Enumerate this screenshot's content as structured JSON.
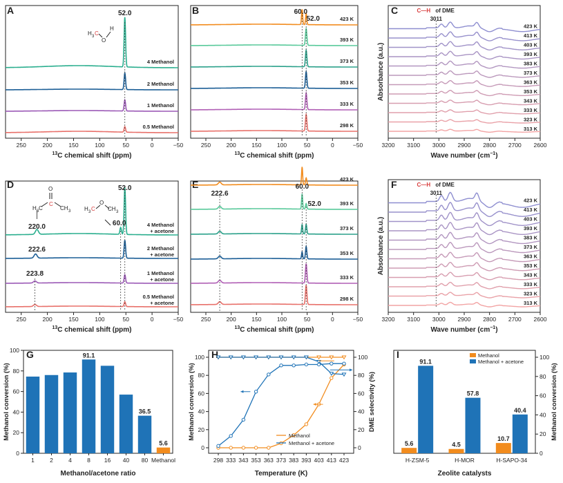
{
  "colors": {
    "orange": "#F28C1E",
    "blue": "#1F73B7",
    "teal": "#2AAE8E",
    "navy": "#1B5E96",
    "purple": "#9B59B6",
    "salmon": "#E8706A",
    "axis": "#222222"
  },
  "labels": {
    "A": "A",
    "B": "B",
    "C": "C",
    "D": "D",
    "E": "E",
    "F": "F",
    "G": "G",
    "H": "H",
    "I": "I",
    "nmr_xlabel": "13C chemical shift (ppm)",
    "nmr_sup": "13",
    "nmr_xlabel_rest": "C chemical shift (ppm)",
    "ir_xlabel": "Wave number (cm",
    "ir_xlabel_sup": "−1",
    "ir_xlabel_end": ")",
    "ir_ylabel": "Absorbance (a.u.)",
    "ch_label": "C—H",
    "of_dme": "of DME",
    "peak_3011": "3011",
    "peak_52": "52.0",
    "peak_60": "60.0",
    "peak_2226": "222.6",
    "peak_2238": "223.8",
    "peak_2200": "220.0",
    "mol_methanol": "H3C–O–H",
    "mol_acetone": "acetone",
    "mol_dme": "DME"
  },
  "chart_data": [
    {
      "panel": "A",
      "type": "line",
      "title": "",
      "xlabel": "13C chemical shift (ppm)",
      "xlim": [
        280,
        -50
      ],
      "xticks": [
        "250",
        "200",
        "150",
        "100",
        "50",
        "0",
        "−50"
      ],
      "series": [
        {
          "name": "0.5 Methanol",
          "peak_ppm": 52.0
        },
        {
          "name": "1 Methanol",
          "peak_ppm": 52.0
        },
        {
          "name": "2 Methanol",
          "peak_ppm": 52.0
        },
        {
          "name": "4 Methanol",
          "peak_ppm": 52.0
        }
      ],
      "annotations": [
        "52.0"
      ]
    },
    {
      "panel": "B",
      "type": "line",
      "xlabel": "13C chemical shift (ppm)",
      "xlim": [
        280,
        -50
      ],
      "xticks": [
        "250",
        "200",
        "150",
        "100",
        "50",
        "0",
        "−50"
      ],
      "series": [
        {
          "name": "298 K",
          "peak_ppm": 52.0
        },
        {
          "name": "333 K",
          "peak_ppm": 52.0
        },
        {
          "name": "353 K",
          "peak_ppm": 52.0
        },
        {
          "name": "373 K",
          "peak_ppm": 52.0
        },
        {
          "name": "393 K",
          "peak_ppm": 52.0
        },
        {
          "name": "423 K",
          "peak_ppm": 60.0
        }
      ],
      "annotations": [
        "60.0",
        "52.0"
      ]
    },
    {
      "panel": "C",
      "type": "line",
      "xlabel": "Wave number (cm−1)",
      "ylabel": "Absorbance (a.u.)",
      "xlim": [
        3200,
        2600
      ],
      "xticks": [
        "3200",
        "3100",
        "3000",
        "2900",
        "2800",
        "2700",
        "2600"
      ],
      "series_names": [
        "313 K",
        "323 K",
        "333 K",
        "343 K",
        "353 K",
        "363 K",
        "373 K",
        "383 K",
        "393 K",
        "403 K",
        "413 K",
        "423 K"
      ],
      "annotations": [
        "C—H of DME",
        "3011"
      ]
    },
    {
      "panel": "D",
      "type": "line",
      "xlabel": "13C chemical shift (ppm)",
      "xlim": [
        280,
        -50
      ],
      "xticks": [
        "250",
        "200",
        "150",
        "100",
        "50",
        "0",
        "−50"
      ],
      "series": [
        {
          "name_line1": "0.5 Methanol",
          "name_line2": "+ acetone",
          "peak_ppm": 223.8
        },
        {
          "name_line1": "1 Methanol",
          "name_line2": "+ acetone",
          "peak_ppm": 223.8
        },
        {
          "name_line1": "2 Methanol",
          "name_line2": "+ acetone",
          "peak_ppm": 222.6
        },
        {
          "name_line1": "4 Methanol",
          "name_line2": "+ acetone",
          "peak_ppm": 220.0
        }
      ],
      "annotations": [
        "52.0",
        "60.0",
        "220.0",
        "222.6",
        "223.8"
      ]
    },
    {
      "panel": "E",
      "type": "line",
      "xlabel": "13C chemical shift (ppm)",
      "xlim": [
        280,
        -50
      ],
      "xticks": [
        "250",
        "200",
        "150",
        "100",
        "50",
        "0",
        "−50"
      ],
      "series_names": [
        "298 K",
        "333 K",
        "353 K",
        "373 K",
        "393 K",
        "423 K"
      ],
      "annotations": [
        "222.6",
        "60.0",
        "52.0"
      ]
    },
    {
      "panel": "F",
      "type": "line",
      "xlabel": "Wave number (cm−1)",
      "ylabel": "Absorbance (a.u.)",
      "xlim": [
        3200,
        2600
      ],
      "xticks": [
        "3200",
        "3100",
        "3000",
        "2900",
        "2800",
        "2700",
        "2600"
      ],
      "series_names": [
        "313 K",
        "323 K",
        "333 K",
        "343 K",
        "353 K",
        "363 K",
        "373 K",
        "383 K",
        "393 K",
        "403 K",
        "413 K",
        "423 K"
      ],
      "annotations": [
        "C—H of DME",
        "3011"
      ]
    },
    {
      "panel": "G",
      "type": "bar",
      "xlabel": "Methanol/acetone ratio",
      "ylabel": "Methanol conversion (%)",
      "ylim": [
        0,
        100
      ],
      "yticks": [
        "0",
        "20",
        "40",
        "60",
        "80",
        "100"
      ],
      "categories": [
        "1",
        "2",
        "4",
        "8",
        "16",
        "40",
        "80",
        "Methanol"
      ],
      "values": [
        74.5,
        76.0,
        78.5,
        91.1,
        85.0,
        57.0,
        36.5,
        5.6
      ],
      "data_labels": [
        "",
        "",
        "",
        "91.1",
        "",
        "",
        "36.5",
        "5.6"
      ]
    },
    {
      "panel": "H",
      "type": "line",
      "xlabel": "Temperature (K)",
      "ylabel": "Methanol conversion (%)",
      "y2label": "DME selectivity (%)",
      "ylim": [
        0,
        100
      ],
      "y2lim": [
        0,
        100
      ],
      "yticks": [
        "0",
        "20",
        "40",
        "60",
        "80",
        "100"
      ],
      "categories": [
        "298",
        "333",
        "343",
        "353",
        "363",
        "373",
        "383",
        "393",
        "403",
        "413",
        "423"
      ],
      "series": [
        {
          "name": "Methanol",
          "axis": "left",
          "values": [
            0,
            0,
            0,
            0,
            0,
            5,
            14,
            26,
            48,
            77,
            92
          ]
        },
        {
          "name": "Methanol + acetone",
          "axis": "left",
          "values": [
            2,
            13,
            31,
            62,
            81,
            91,
            91,
            92,
            92,
            93,
            93
          ]
        },
        {
          "name": "Methanol",
          "axis": "right",
          "values": [
            100,
            100,
            100,
            100,
            100,
            100,
            100,
            100,
            100,
            100,
            100
          ]
        },
        {
          "name": "Methanol + acetone",
          "axis": "right",
          "values": [
            100,
            100,
            100,
            100,
            100,
            100,
            100,
            100,
            95,
            82,
            81
          ]
        }
      ],
      "legend": [
        "Methanol",
        "Methanol + acetone"
      ]
    },
    {
      "panel": "I",
      "type": "bar",
      "xlabel": "Zeolite catalysts",
      "ylabel": "Methanol conversion (%)",
      "ylim": [
        0,
        100
      ],
      "yticks": [
        "0",
        "20",
        "40",
        "60",
        "80",
        "100"
      ],
      "categories": [
        "H-ZSM-5",
        "H-MOR",
        "H-SAPO-34"
      ],
      "series": [
        {
          "name": "Methanol",
          "values": [
            5.6,
            4.5,
            10.7
          ]
        },
        {
          "name": "Methanol + acetone",
          "values": [
            91.1,
            57.8,
            40.4
          ]
        }
      ],
      "legend": [
        "Methanol",
        "Methanol + acetone"
      ]
    }
  ]
}
